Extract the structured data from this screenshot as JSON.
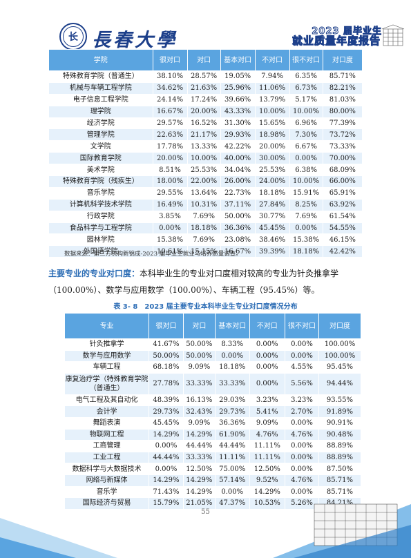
{
  "header": {
    "logo_glyph": "长",
    "university_name": "長春大學",
    "report_line1": "2023 届毕业生",
    "report_line2": "就业质量年度报告"
  },
  "table1": {
    "headers": [
      "学院",
      "很对口",
      "对口",
      "基本对口",
      "不对口",
      "很不对口",
      "对口度"
    ],
    "rows": [
      [
        "特殊教育学院（普通生）",
        "38.10%",
        "28.57%",
        "19.05%",
        "7.94%",
        "6.35%",
        "85.71%"
      ],
      [
        "机械与车辆工程学院",
        "34.62%",
        "21.63%",
        "25.96%",
        "11.06%",
        "6.73%",
        "82.21%"
      ],
      [
        "电子信息工程学院",
        "24.14%",
        "17.24%",
        "39.66%",
        "13.79%",
        "5.17%",
        "81.03%"
      ],
      [
        "理学院",
        "16.67%",
        "20.00%",
        "43.33%",
        "10.00%",
        "10.00%",
        "80.00%"
      ],
      [
        "经济学院",
        "29.57%",
        "16.52%",
        "31.30%",
        "15.65%",
        "6.96%",
        "77.39%"
      ],
      [
        "管理学院",
        "22.63%",
        "21.17%",
        "29.93%",
        "18.98%",
        "7.30%",
        "73.72%"
      ],
      [
        "文学院",
        "17.78%",
        "13.33%",
        "42.22%",
        "20.00%",
        "6.67%",
        "73.33%"
      ],
      [
        "国际教育学院",
        "20.00%",
        "10.00%",
        "40.00%",
        "30.00%",
        "0.00%",
        "70.00%"
      ],
      [
        "美术学院",
        "8.51%",
        "25.53%",
        "34.04%",
        "25.53%",
        "6.38%",
        "68.09%"
      ],
      [
        "特殊教育学院（残疾生）",
        "18.00%",
        "22.00%",
        "26.00%",
        "24.00%",
        "10.00%",
        "66.00%"
      ],
      [
        "音乐学院",
        "29.55%",
        "13.64%",
        "22.73%",
        "18.18%",
        "15.91%",
        "65.91%"
      ],
      [
        "计算机科学技术学院",
        "16.49%",
        "10.31%",
        "37.11%",
        "27.84%",
        "8.25%",
        "63.92%"
      ],
      [
        "行政学院",
        "3.85%",
        "7.69%",
        "50.00%",
        "30.77%",
        "7.69%",
        "61.54%"
      ],
      [
        "食品科学与工程学院",
        "0.00%",
        "18.18%",
        "36.36%",
        "45.45%",
        "0.00%",
        "54.55%"
      ],
      [
        "园林学院",
        "15.38%",
        "7.69%",
        "23.08%",
        "38.46%",
        "15.38%",
        "46.15%"
      ],
      [
        "外国语学院",
        "10.61%",
        "15.15%",
        "16.67%",
        "39.39%",
        "18.18%",
        "42.42%"
      ]
    ]
  },
  "source_note": "数据来源：第三方机构新锦成-2023 届毕业生就业与培养质量调查。",
  "paragraph": {
    "highlight": "主要专业的专业对口度：",
    "text": "本科毕业生的专业对口度相对较高的专业为针灸推拿学（100.00%）、数学与应用数学（100.00%）、车辆工程（95.45%）等。"
  },
  "caption": "表 3- 8　2023 届主要专业本科毕业生专业对口度情况分布",
  "table2": {
    "headers": [
      "专业",
      "很对口",
      "对口",
      "基本对口",
      "不对口",
      "很不对口",
      "对口度"
    ],
    "rows": [
      [
        "针灸推拿学",
        "41.67%",
        "50.00%",
        "8.33%",
        "0.00%",
        "0.00%",
        "100.00%"
      ],
      [
        "数学与应用数学",
        "50.00%",
        "50.00%",
        "0.00%",
        "0.00%",
        "0.00%",
        "100.00%"
      ],
      [
        "车辆工程",
        "68.18%",
        "9.09%",
        "18.18%",
        "0.00%",
        "4.55%",
        "95.45%"
      ],
      [
        "康复治疗学（特殊教育学院（普通生）",
        "27.78%",
        "33.33%",
        "33.33%",
        "0.00%",
        "5.56%",
        "94.44%"
      ],
      [
        "电气工程及其自动化",
        "48.39%",
        "16.13%",
        "29.03%",
        "3.23%",
        "3.23%",
        "93.55%"
      ],
      [
        "会计学",
        "29.73%",
        "32.43%",
        "29.73%",
        "5.41%",
        "2.70%",
        "91.89%"
      ],
      [
        "舞蹈表演",
        "45.45%",
        "9.09%",
        "36.36%",
        "9.09%",
        "0.00%",
        "90.91%"
      ],
      [
        "物联网工程",
        "14.29%",
        "14.29%",
        "61.90%",
        "4.76%",
        "4.76%",
        "90.48%"
      ],
      [
        "工商管理",
        "0.00%",
        "44.44%",
        "44.44%",
        "11.11%",
        "0.00%",
        "88.89%"
      ],
      [
        "工业工程",
        "44.44%",
        "33.33%",
        "11.11%",
        "11.11%",
        "0.00%",
        "88.89%"
      ],
      [
        "数据科学与大数据技术",
        "0.00%",
        "12.50%",
        "75.00%",
        "12.50%",
        "0.00%",
        "87.50%"
      ],
      [
        "网络与新媒体",
        "14.29%",
        "14.29%",
        "57.14%",
        "9.52%",
        "4.76%",
        "85.71%"
      ],
      [
        "音乐学",
        "71.43%",
        "14.29%",
        "0.00%",
        "14.29%",
        "0.00%",
        "85.71%"
      ],
      [
        "国际经济与贸易",
        "15.79%",
        "21.05%",
        "47.37%",
        "10.53%",
        "5.26%",
        "84.21%"
      ]
    ]
  },
  "page_number": "55",
  "colors": {
    "header_blue": "#5aa4e0",
    "stripe": "#e6f1fb",
    "accent": "#2b6cb5",
    "logo": "#1c3f8a"
  }
}
